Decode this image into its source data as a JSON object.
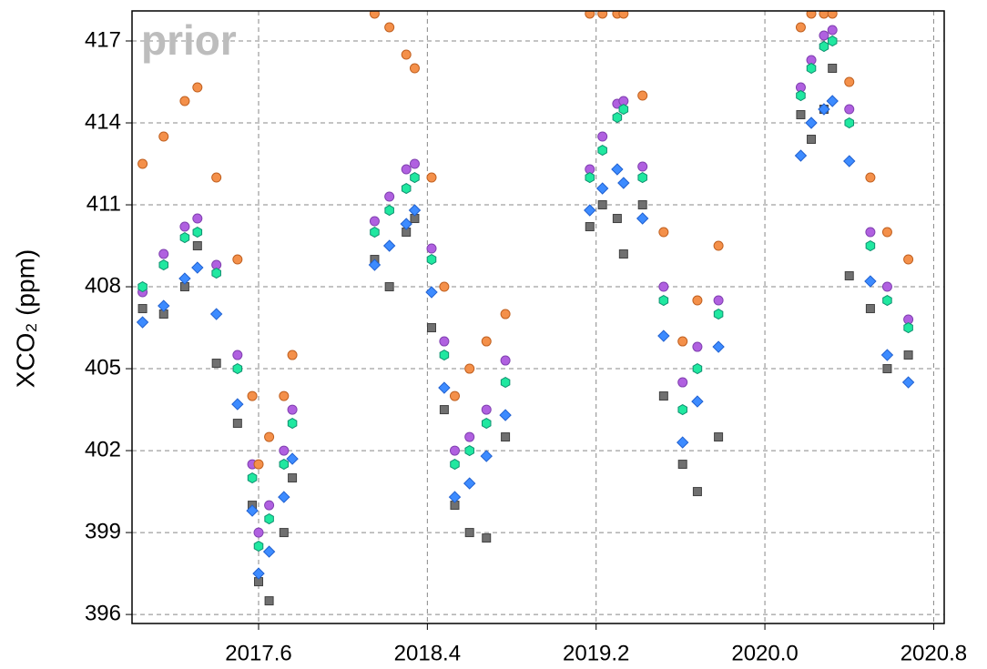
{
  "chart_data": {
    "type": "scatter",
    "ylabel": "XCO₂ (ppm)",
    "annotation": "prior",
    "xlim": [
      2017.0,
      2020.85
    ],
    "ylim": [
      395.67,
      418.1
    ],
    "xticks": [
      2017.6,
      2018.4,
      2019.2,
      {
        "value": 2020.0,
        "label": "2020.0"
      },
      2020.8
    ],
    "yticks": [
      396,
      399,
      402,
      405,
      408,
      411,
      414,
      417
    ],
    "grid": true,
    "x": [
      2017.05,
      2017.15,
      2017.25,
      2017.31,
      2017.4,
      2017.5,
      2017.57,
      2017.6,
      2017.65,
      2017.72,
      2017.76,
      2018.15,
      2018.22,
      2018.3,
      2018.34,
      2018.42,
      2018.48,
      2018.53,
      2018.6,
      2018.68,
      2018.77,
      2019.17,
      2019.23,
      2019.3,
      2019.33,
      2019.42,
      2019.52,
      2019.61,
      2019.68,
      2019.78,
      2020.17,
      2020.22,
      2020.28,
      2020.32,
      2020.4,
      2020.5,
      2020.58,
      2020.68
    ],
    "series": [
      {
        "color": "#707070",
        "edge": "#404040",
        "marker": "square",
        "values": [
          407.2,
          407,
          408,
          409.5,
          405.2,
          403,
          400,
          397.2,
          396.5,
          399,
          401,
          409,
          408,
          410,
          410.5,
          406.5,
          403.5,
          400,
          399,
          398.8,
          402.5,
          410.2,
          411,
          410.5,
          409.2,
          411,
          404,
          401.5,
          400.5,
          402.5,
          414.3,
          413.4,
          414.5,
          416,
          408.4,
          407.2,
          405,
          405.5
        ]
      },
      {
        "color": "#3d8bff",
        "edge": "#2060d0",
        "marker": "diamond",
        "values": [
          406.7,
          407.3,
          408.3,
          408.7,
          407,
          403.7,
          399.8,
          397.5,
          398.3,
          400.3,
          401.7,
          408.8,
          409.5,
          410.3,
          410.8,
          407.8,
          404.3,
          400.3,
          400.8,
          401.8,
          403.3,
          410.8,
          411.6,
          412.3,
          411.8,
          410.5,
          406.2,
          402.3,
          403.8,
          405.8,
          412.8,
          414,
          414.5,
          414.8,
          412.6,
          408.2,
          405.5,
          404.5
        ]
      },
      {
        "color": "#b060e0",
        "edge": "#8040b0",
        "marker": "circle",
        "values": [
          407.8,
          409.2,
          410.2,
          410.5,
          408.8,
          405.5,
          401.5,
          399,
          400,
          402,
          403.5,
          410.4,
          411.3,
          412.3,
          412.5,
          409.4,
          406,
          402,
          402.5,
          403.5,
          405.3,
          412.3,
          413.5,
          414.7,
          414.8,
          412.4,
          408,
          404.5,
          405.8,
          407.5,
          415.3,
          416.3,
          417.2,
          417.4,
          414.5,
          410,
          408,
          406.8
        ]
      },
      {
        "color": "#20e8a0",
        "edge": "#109070",
        "marker": "hexagon",
        "values": [
          408,
          408.8,
          409.8,
          410,
          408.5,
          405,
          401,
          398.5,
          399.5,
          401.5,
          403,
          410,
          410.8,
          411.6,
          412,
          409,
          405.5,
          401.5,
          402,
          403,
          404.5,
          412,
          413,
          414.2,
          414.5,
          412,
          407.5,
          403.5,
          405,
          407,
          415,
          416,
          416.8,
          417,
          414,
          409.5,
          407.5,
          406.5
        ]
      },
      {
        "color": "#f4904a",
        "edge": "#c06020",
        "marker": "circle",
        "values": [
          412.5,
          413.5,
          414.8,
          415.3,
          412,
          409,
          404,
          401.5,
          402.5,
          404,
          405.5,
          418,
          417.5,
          416.5,
          416,
          412,
          408,
          404,
          405,
          406,
          407,
          418,
          418,
          418,
          418,
          415,
          410,
          406,
          407.5,
          409.5,
          417.5,
          418,
          418,
          418,
          415.5,
          412,
          410,
          409
        ]
      }
    ]
  }
}
